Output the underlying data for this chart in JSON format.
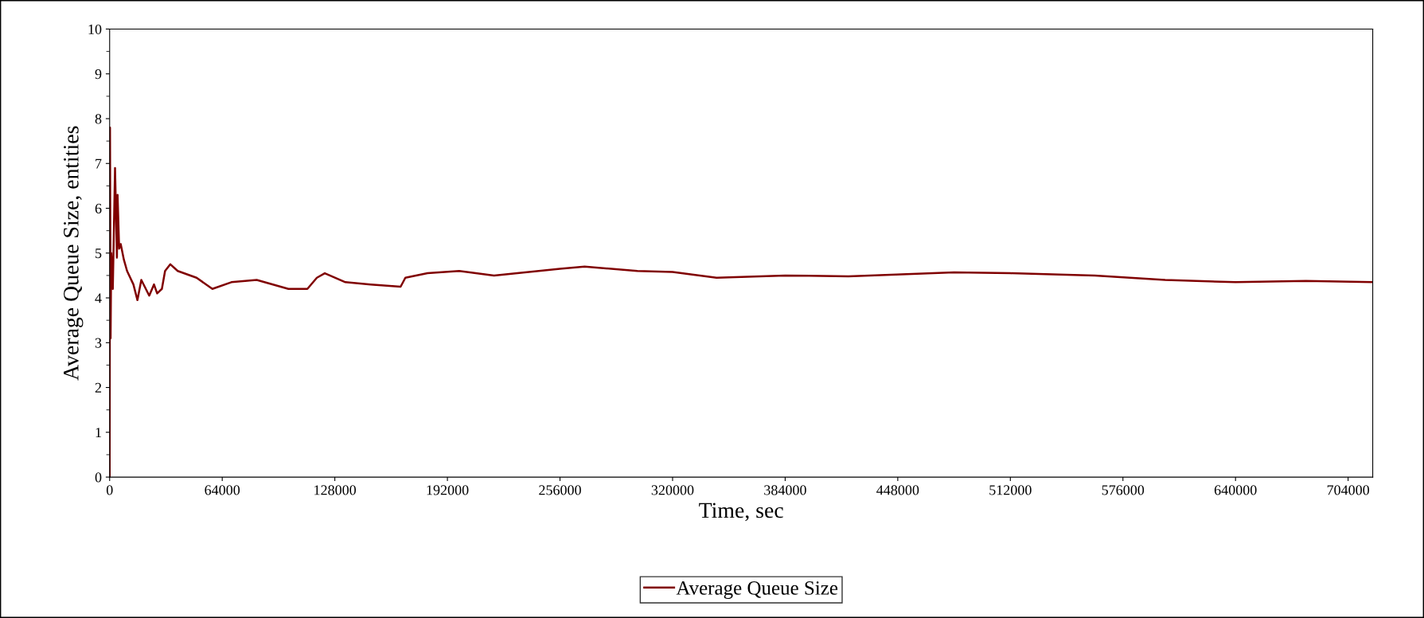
{
  "chart_data": {
    "type": "line",
    "xlabel": "Time, sec",
    "ylabel": "Average Queue Size, entities",
    "xlim": [
      0,
      718000
    ],
    "xticks": [
      0,
      64000,
      128000,
      192000,
      256000,
      320000,
      384000,
      448000,
      512000,
      576000,
      640000,
      704000
    ],
    "ylim": [
      0,
      10
    ],
    "yticks": [
      0,
      1,
      2,
      3,
      4,
      5,
      6,
      7,
      8,
      9,
      10
    ],
    "grid": false,
    "legend": "bottom",
    "marker": "none",
    "line_style": "solid",
    "series": [
      {
        "name": "Average Queue Size",
        "color": "#800000",
        "x": [
          0,
          200,
          540,
          900,
          1800,
          3060,
          4140,
          4500,
          5400,
          6300,
          8100,
          9900,
          13500,
          15800,
          18000,
          22500,
          25200,
          27000,
          29700,
          31500,
          34500,
          38700,
          49400,
          58400,
          69200,
          83600,
          101600,
          112400,
          117800,
          122300,
          134000,
          148300,
          165400,
          168100,
          180700,
          198700,
          218500,
          256000,
          270000,
          300000,
          320000,
          345000,
          384000,
          420000,
          480000,
          512000,
          560000,
          600000,
          640000,
          680000,
          718000
        ],
        "values": [
          0,
          7.8,
          3.1,
          5.0,
          4.2,
          6.9,
          4.9,
          6.3,
          5.1,
          5.2,
          4.85,
          4.6,
          4.3,
          3.95,
          4.4,
          4.05,
          4.3,
          4.1,
          4.2,
          4.6,
          4.75,
          4.6,
          4.45,
          4.2,
          4.35,
          4.4,
          4.2,
          4.2,
          4.45,
          4.55,
          4.35,
          4.3,
          4.25,
          4.45,
          4.55,
          4.6,
          4.5,
          4.65,
          4.7,
          4.6,
          4.58,
          4.45,
          4.5,
          4.48,
          4.57,
          4.55,
          4.5,
          4.4,
          4.35,
          4.38,
          4.35
        ]
      }
    ]
  }
}
